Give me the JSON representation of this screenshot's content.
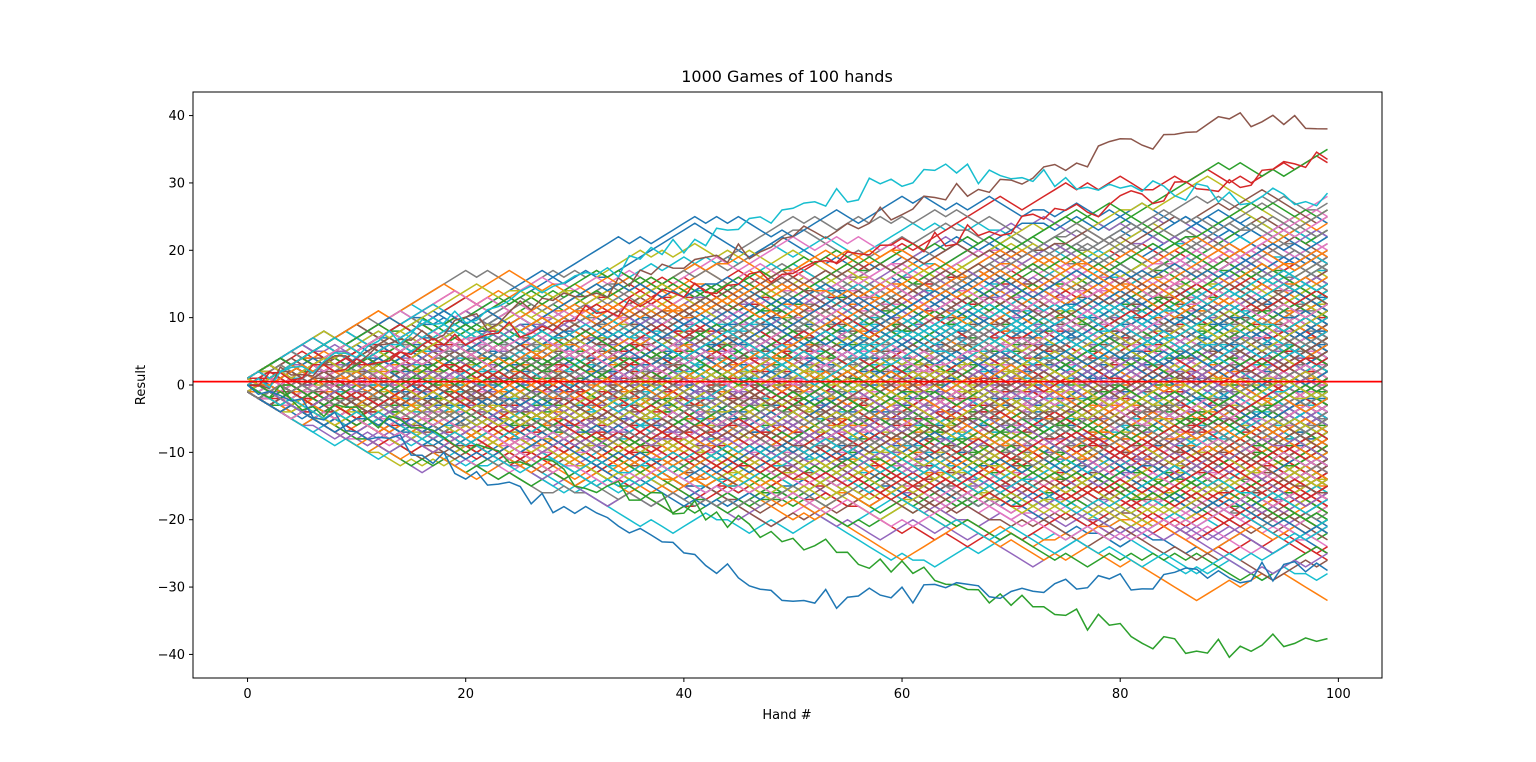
{
  "chart_data": {
    "type": "line",
    "title": "1000 Games of 100 hands",
    "xlabel": "Hand #",
    "ylabel": "Result",
    "xlim": [
      -5,
      104
    ],
    "ylim": [
      -43.5,
      43.5
    ],
    "xticks": [
      0,
      20,
      40,
      60,
      80,
      100
    ],
    "yticks": [
      -40,
      -30,
      -20,
      -10,
      0,
      10,
      20,
      30,
      40
    ],
    "grid": false,
    "legend": "none",
    "num_series": 1000,
    "hands_per_game": 100,
    "step_size": 1,
    "series_palette": [
      "#1f77b4",
      "#ff7f0e",
      "#2ca02c",
      "#d62728",
      "#9467bd",
      "#8c564b",
      "#e377c2",
      "#7f7f7f",
      "#bcbd22",
      "#17becf"
    ],
    "reference_line": {
      "orientation": "horizontal",
      "y": 0.5,
      "color": "#ff0000"
    },
    "highlighted_paths": [
      {
        "color": "#8c564b",
        "final": 39.5,
        "peak": 39.5,
        "peak_hand": 90
      },
      {
        "color": "#d62728",
        "final": 33.5
      },
      {
        "color": "#17becf",
        "peak": 32,
        "peak_hand": 62
      },
      {
        "color": "#2ca02c",
        "final": -37.5,
        "trough": -39.5,
        "trough_hand": 87
      },
      {
        "color": "#1f77b4",
        "trough": -32,
        "trough_hand": 51
      }
    ]
  }
}
